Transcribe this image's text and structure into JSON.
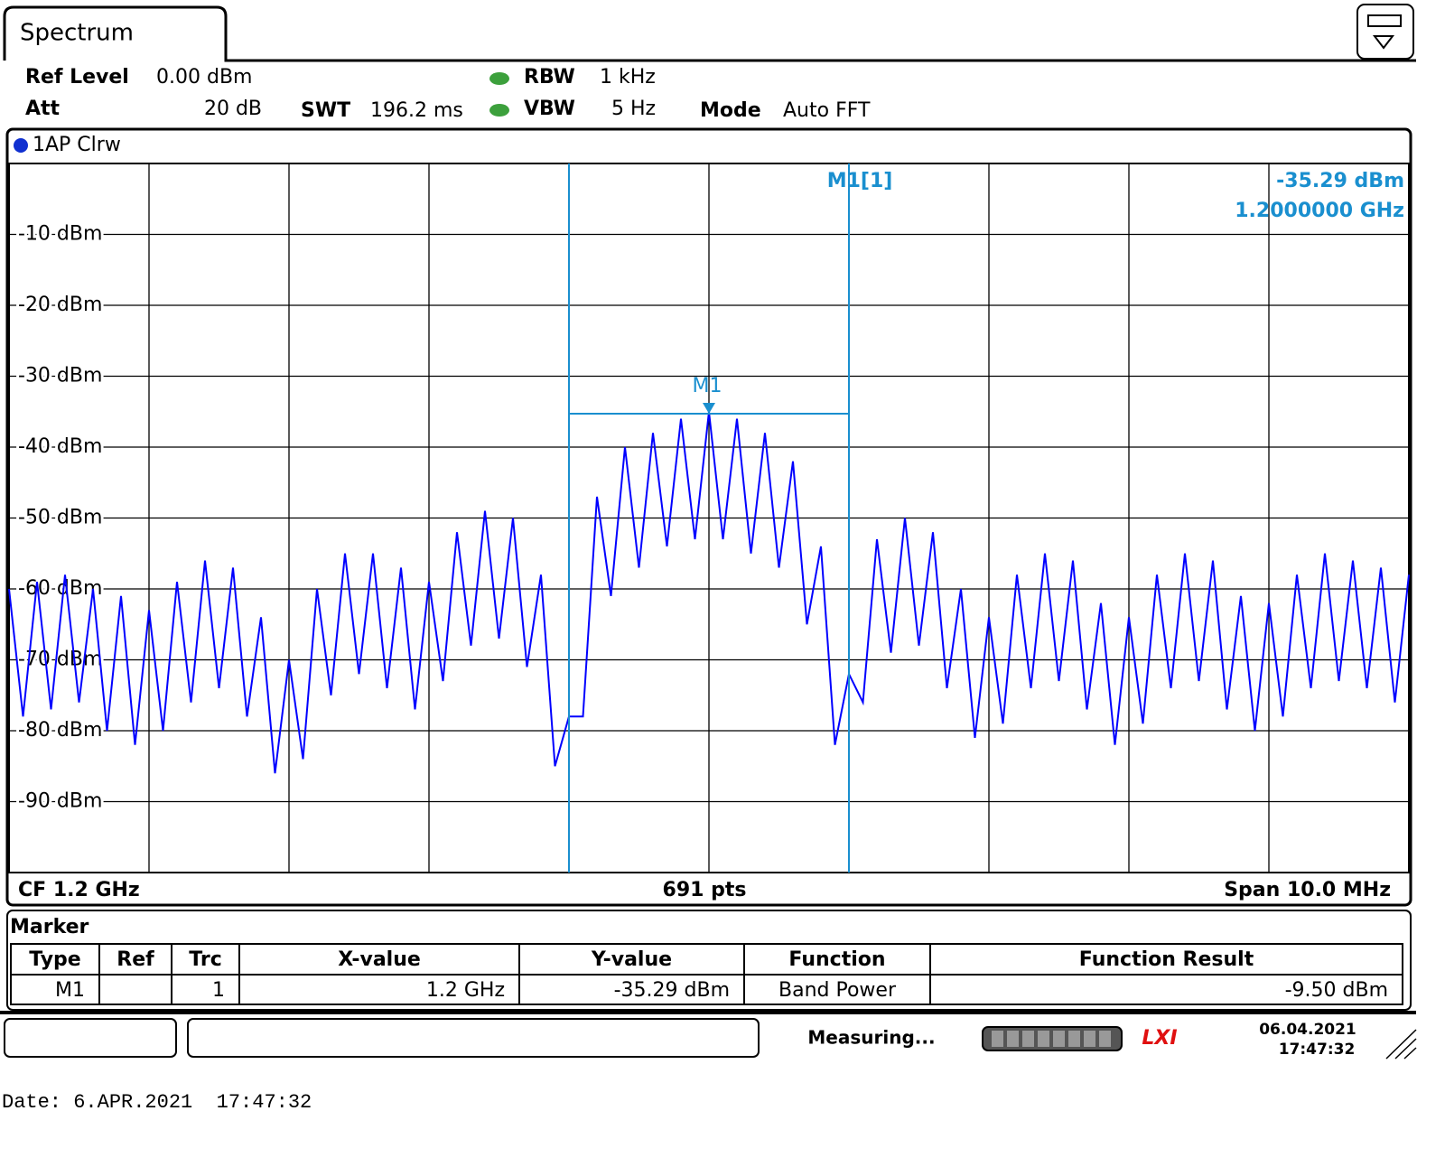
{
  "header": {
    "tab": "Spectrum",
    "ref_level": {
      "label": "Ref Level",
      "value": "0.00 dBm"
    },
    "att": {
      "label": "Att",
      "value": "20 dB"
    },
    "swt": {
      "label": "SWT",
      "value": "196.2 ms"
    },
    "rbw": {
      "label": "RBW",
      "value": "1 kHz"
    },
    "vbw": {
      "label": "VBW",
      "value": "5 Hz"
    },
    "mode": {
      "label": "Mode",
      "value": "Auto FFT"
    }
  },
  "trace_label": "1AP Clrw",
  "chart_data": {
    "type": "line",
    "xlim": [
      1195,
      1205
    ],
    "xticks": [
      1196,
      1197,
      1198,
      1199,
      1200,
      1201,
      1202,
      1203,
      1204
    ],
    "ylim": [
      -100,
      0
    ],
    "yticks": [
      {
        "value": -10,
        "label": "-10 dBm"
      },
      {
        "value": -20,
        "label": "-20 dBm"
      },
      {
        "value": -30,
        "label": "-30 dBm"
      },
      {
        "value": -40,
        "label": "-40 dBm"
      },
      {
        "value": -50,
        "label": "-50 dBm"
      },
      {
        "value": -60,
        "label": "-60 dBm"
      },
      {
        "value": -70,
        "label": "-70 dBm"
      },
      {
        "value": -80,
        "label": "-80 dBm"
      },
      {
        "value": -90,
        "label": "-90 dBm"
      }
    ],
    "grid": true,
    "x": [
      1195.0,
      1195.1,
      1195.2,
      1195.3,
      1195.4,
      1195.5,
      1195.6,
      1195.7,
      1195.8,
      1195.9,
      1196.0,
      1196.1,
      1196.2,
      1196.3,
      1196.4,
      1196.5,
      1196.6,
      1196.7,
      1196.8,
      1196.9,
      1197.0,
      1197.1,
      1197.2,
      1197.3,
      1197.4,
      1197.5,
      1197.6,
      1197.7,
      1197.8,
      1197.9,
      1198.0,
      1198.1,
      1198.2,
      1198.3,
      1198.4,
      1198.5,
      1198.6,
      1198.7,
      1198.8,
      1198.9,
      1199.0,
      1199.1,
      1199.2,
      1199.3,
      1199.4,
      1199.5,
      1199.6,
      1199.7,
      1199.8,
      1199.9,
      1200.0,
      1200.1,
      1200.2,
      1200.3,
      1200.4,
      1200.5,
      1200.6,
      1200.7,
      1200.8,
      1200.9,
      1201.0,
      1201.1,
      1201.2,
      1201.3,
      1201.4,
      1201.5,
      1201.6,
      1201.7,
      1201.8,
      1201.9,
      1202.0,
      1202.1,
      1202.2,
      1202.3,
      1202.4,
      1202.5,
      1202.6,
      1202.7,
      1202.8,
      1202.9,
      1203.0,
      1203.1,
      1203.2,
      1203.3,
      1203.4,
      1203.5,
      1203.6,
      1203.7,
      1203.8,
      1203.9,
      1204.0,
      1204.1,
      1204.2,
      1204.3,
      1204.4,
      1204.5,
      1204.6,
      1204.7,
      1204.8,
      1204.9,
      1205.0
    ],
    "series": [
      {
        "color": "#0000ff",
        "values": [
          -60,
          -78,
          -59,
          -77,
          -58,
          -76,
          -60,
          -80,
          -61,
          -82,
          -63,
          -80,
          -59,
          -76,
          -56,
          -74,
          -57,
          -78,
          -64,
          -86,
          -70,
          -84,
          -60,
          -75,
          -55,
          -72,
          -55,
          -74,
          -57,
          -77,
          -59,
          -73,
          -52,
          -68,
          -49,
          -67,
          -50,
          -71,
          -58,
          -85,
          -78,
          -78,
          -47,
          -61,
          -40,
          -57,
          -38,
          -54,
          -36,
          -53,
          -35,
          -53,
          -36,
          -55,
          -38,
          -57,
          -42,
          -65,
          -54,
          -82,
          -72,
          -76,
          -53,
          -69,
          -50,
          -68,
          -52,
          -74,
          -60,
          -81,
          -64,
          -79,
          -58,
          -74,
          -55,
          -73,
          -56,
          -77,
          -62,
          -82,
          -64,
          -79,
          -58,
          -74,
          -55,
          -73,
          -56,
          -77,
          -61,
          -80,
          -62,
          -78,
          -58,
          -74,
          -55,
          -73,
          -56,
          -74,
          -57,
          -76,
          -58
        ]
      }
    ],
    "marker": {
      "label": "M1",
      "x": 1200,
      "y": -35.29,
      "readout_title": "M1[1]",
      "readout_level": "-35.29 dBm",
      "readout_freq": "1.2000000 GHz"
    },
    "band_edges": [
      1199,
      1201
    ],
    "band_color": "#1a8fcf"
  },
  "footer": {
    "center": "CF 1.2 GHz",
    "points": "691 pts",
    "span": "Span 10.0 MHz"
  },
  "marker_table": {
    "title": "Marker",
    "columns": [
      "Type",
      "Ref",
      "Trc",
      "X-value",
      "Y-value",
      "Function",
      "Function Result"
    ],
    "rows": [
      [
        "M1",
        null,
        "1",
        "1.2 GHz",
        "-35.29 dBm",
        "Band Power",
        "-9.50 dBm"
      ]
    ]
  },
  "status": {
    "state": "Measuring...",
    "logo": "LXI",
    "date": "06.04.2021",
    "time": "17:47:32"
  },
  "print_date": "Date: 6.APR.2021  17:47:32"
}
